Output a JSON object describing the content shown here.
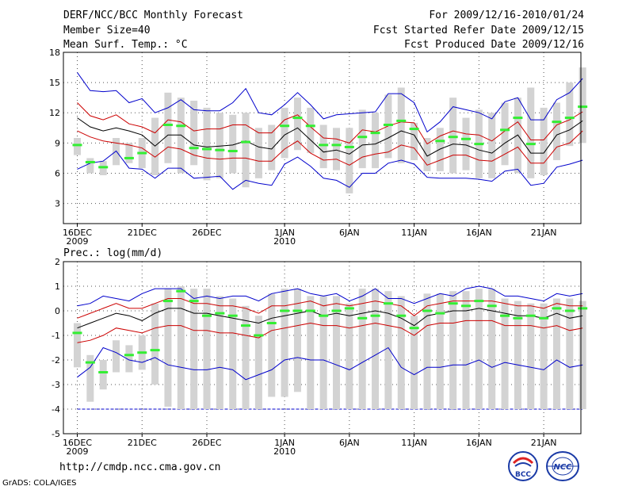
{
  "header": {
    "title": "DERF/NCC/BCC Monthly Forecast",
    "member_size": "Member Size=40",
    "variable": "Mean Surf. Temp.: °C",
    "period": "For 2009/12/16-2010/01/24",
    "started": "Fcst Started Refer Date 2009/12/15",
    "produced": "Fcst Produced Date 2009/12/16"
  },
  "footer": {
    "url": "http://cmdp.ncc.cma.gov.cn",
    "credit": "GrADS: COLA/IGES",
    "logo_bcc": "BCC",
    "logo_ncc": "NCC"
  },
  "colors": {
    "box": "#d3d3d3",
    "median": "#000000",
    "inner": "#cc0000",
    "outer": "#0000cc",
    "obs": "#33ee33",
    "grid": "#555555"
  },
  "chart_data": [
    {
      "type": "box",
      "title": "Mean Surf. Temp.: °C",
      "ylim": [
        1,
        18
      ],
      "yticks": [
        3,
        6,
        9,
        12,
        15,
        18
      ],
      "xticks": [
        {
          "day": 0,
          "label": "16DEC",
          "sub": "2009"
        },
        {
          "day": 5,
          "label": "21DEC",
          "sub": ""
        },
        {
          "day": 10,
          "label": "26DEC",
          "sub": ""
        },
        {
          "day": 16,
          "label": "1JAN",
          "sub": "2010"
        },
        {
          "day": 21,
          "label": "6JAN",
          "sub": ""
        },
        {
          "day": 26,
          "label": "11JAN",
          "sub": ""
        },
        {
          "day": 31,
          "label": "16JAN",
          "sub": ""
        },
        {
          "day": 36,
          "label": "21JAN",
          "sub": ""
        }
      ],
      "days": 40,
      "box_low": [
        7.8,
        6.0,
        5.8,
        6.8,
        7.0,
        6.5,
        5.8,
        7.0,
        6.0,
        6.8,
        5.3,
        5.5,
        6.0,
        4.6,
        5.5,
        6.3,
        7.5,
        8.3,
        8.0,
        6.5,
        6.3,
        4.0,
        6.5,
        6.5,
        7.5,
        7.0,
        7.3,
        6.2,
        6.2,
        6.0,
        6.3,
        5.5,
        5.5,
        6.8,
        6.0,
        5.5,
        5.8,
        7.3,
        8.7,
        9.0
      ],
      "box_high": [
        9.5,
        7.5,
        7.2,
        9.5,
        9.0,
        9.5,
        11.5,
        14.0,
        13.5,
        13.2,
        12.5,
        12.0,
        11.8,
        12.0,
        10.5,
        10.8,
        12.5,
        13.5,
        12.5,
        10.8,
        10.5,
        10.5,
        12.3,
        12.0,
        13.8,
        14.5,
        11.0,
        9.5,
        10.5,
        13.5,
        11.5,
        12.3,
        12.0,
        13.0,
        13.5,
        14.5,
        12.5,
        13.0,
        15.0,
        16.5
      ],
      "median": [
        11.5,
        10.6,
        10.2,
        10.5,
        10.2,
        9.8,
        8.7,
        9.8,
        9.8,
        8.8,
        8.6,
        8.7,
        8.8,
        9.2,
        8.6,
        8.4,
        9.8,
        10.5,
        9.3,
        8.1,
        8.3,
        7.9,
        8.8,
        8.9,
        9.5,
        10.2,
        9.8,
        7.7,
        8.4,
        8.9,
        8.8,
        8.3,
        8.0,
        9.0,
        9.8,
        8.0,
        8.0,
        9.8,
        10.3,
        11.2
      ],
      "inner_upper": [
        13.0,
        11.7,
        11.3,
        11.8,
        10.9,
        10.6,
        10.0,
        11.3,
        11.1,
        10.2,
        10.4,
        10.4,
        10.8,
        10.8,
        10.0,
        10.0,
        11.3,
        11.8,
        10.6,
        9.5,
        9.4,
        9.0,
        10.3,
        10.1,
        10.7,
        11.1,
        11.0,
        8.9,
        9.7,
        10.2,
        9.9,
        9.8,
        9.2,
        10.2,
        11.1,
        9.3,
        9.3,
        10.8,
        11.3,
        12.1
      ],
      "inner_lower": [
        10.2,
        9.6,
        9.2,
        9.0,
        8.8,
        8.5,
        7.6,
        8.6,
        8.4,
        7.8,
        7.5,
        7.4,
        7.5,
        7.5,
        7.2,
        7.2,
        8.4,
        9.2,
        8.0,
        7.3,
        7.4,
        6.8,
        7.6,
        7.9,
        8.1,
        8.8,
        8.5,
        6.8,
        7.3,
        7.8,
        7.8,
        7.3,
        7.2,
        7.9,
        8.6,
        7.0,
        7.0,
        8.6,
        9.0,
        10.2
      ],
      "outer_upper": [
        16.0,
        14.2,
        14.1,
        14.2,
        13.0,
        13.4,
        12.0,
        12.5,
        13.3,
        12.3,
        12.2,
        12.2,
        13.0,
        14.4,
        12.0,
        11.8,
        12.8,
        14.0,
        12.8,
        11.4,
        11.8,
        11.9,
        12.0,
        12.1,
        13.9,
        13.9,
        13.0,
        10.1,
        11.1,
        12.6,
        12.3,
        12.0,
        11.4,
        13.1,
        13.5,
        11.3,
        11.3,
        13.3,
        14.0,
        15.4
      ],
      "outer_lower": [
        6.4,
        7.0,
        7.2,
        8.2,
        6.5,
        6.4,
        5.5,
        6.5,
        6.5,
        5.5,
        5.6,
        5.7,
        4.4,
        5.3,
        5.0,
        4.8,
        6.9,
        7.6,
        6.7,
        5.5,
        5.3,
        4.6,
        6.0,
        6.0,
        7.0,
        7.3,
        6.9,
        5.6,
        5.5,
        5.5,
        5.5,
        5.4,
        5.2,
        6.2,
        6.4,
        4.8,
        5.0,
        6.6,
        6.9,
        7.3
      ],
      "observed": [
        8.8,
        7.1,
        6.6,
        null,
        7.5,
        8.0,
        null,
        10.8,
        10.7,
        8.5,
        8.4,
        8.3,
        8.2,
        9.1,
        null,
        null,
        10.7,
        11.5,
        10.7,
        8.8,
        8.8,
        8.6,
        9.6,
        10.0,
        10.8,
        11.2,
        10.4,
        null,
        9.2,
        9.6,
        9.4,
        8.9,
        null,
        10.3,
        11.5,
        8.9,
        null,
        11.1,
        11.5,
        12.6
      ]
    },
    {
      "type": "box",
      "title": "Prec.: log(mm/d)",
      "ylim": [
        -5,
        2
      ],
      "yticks": [
        -5,
        -4,
        -3,
        -2,
        -1,
        0,
        1,
        2
      ],
      "xticks": [
        {
          "day": 0,
          "label": "16DEC",
          "sub": "2009"
        },
        {
          "day": 5,
          "label": "21DEC",
          "sub": ""
        },
        {
          "day": 10,
          "label": "26DEC",
          "sub": ""
        },
        {
          "day": 16,
          "label": "1JAN",
          "sub": "2010"
        },
        {
          "day": 21,
          "label": "6JAN",
          "sub": ""
        },
        {
          "day": 26,
          "label": "11JAN",
          "sub": ""
        },
        {
          "day": 31,
          "label": "16JAN",
          "sub": ""
        },
        {
          "day": 36,
          "label": "21JAN",
          "sub": ""
        }
      ],
      "days": 40,
      "box_low": [
        -2.3,
        -3.7,
        -3.2,
        -2.5,
        -2.5,
        -2.4,
        -3.0,
        -3.9,
        -4.0,
        -4.0,
        -4.0,
        -4.0,
        -4.0,
        -4.0,
        -4.0,
        -3.5,
        -3.5,
        -3.3,
        -4.0,
        -4.0,
        -4.0,
        -4.0,
        -4.0,
        -4.0,
        -4.0,
        -4.0,
        -4.0,
        -4.0,
        -4.0,
        -4.0,
        -4.0,
        -4.0,
        -4.0,
        -4.0,
        -4.0,
        -4.0,
        -4.0,
        -4.0,
        -4.0,
        -4.0
      ],
      "box_high": [
        -0.5,
        -1.8,
        -2.0,
        -1.2,
        -1.4,
        -1.0,
        0.3,
        0.9,
        1.0,
        0.9,
        0.9,
        0.6,
        0.5,
        0.2,
        -0.2,
        0.7,
        0.9,
        0.9,
        0.6,
        0.6,
        0.6,
        0.3,
        0.9,
        0.9,
        0.8,
        0.6,
        -0.2,
        0.7,
        0.7,
        0.8,
        0.8,
        0.9,
        0.9,
        0.5,
        0.4,
        0.3,
        0.3,
        0.5,
        0.5,
        0.4
      ],
      "median": [
        -0.7,
        -0.5,
        -0.3,
        -0.1,
        -0.2,
        -0.4,
        -0.1,
        0.1,
        0.1,
        -0.1,
        -0.1,
        -0.2,
        -0.3,
        -0.4,
        -0.5,
        -0.3,
        -0.2,
        -0.1,
        0.0,
        -0.2,
        -0.1,
        -0.2,
        -0.1,
        0.0,
        -0.1,
        -0.3,
        -0.6,
        -0.2,
        -0.1,
        0.0,
        0.0,
        0.1,
        0.0,
        -0.1,
        -0.2,
        -0.2,
        -0.3,
        -0.1,
        -0.3,
        -0.2
      ],
      "inner_upper": [
        -0.3,
        -0.1,
        0.1,
        0.3,
        0.1,
        0.1,
        0.3,
        0.5,
        0.5,
        0.3,
        0.3,
        0.2,
        0.2,
        0.1,
        -0.1,
        0.2,
        0.2,
        0.3,
        0.4,
        0.2,
        0.3,
        0.2,
        0.3,
        0.4,
        0.3,
        0.2,
        -0.2,
        0.2,
        0.3,
        0.4,
        0.4,
        0.4,
        0.4,
        0.3,
        0.2,
        0.2,
        0.1,
        0.3,
        0.2,
        0.2
      ],
      "inner_lower": [
        -1.3,
        -1.2,
        -1.0,
        -0.7,
        -0.8,
        -0.9,
        -0.7,
        -0.6,
        -0.6,
        -0.8,
        -0.8,
        -0.9,
        -0.9,
        -1.0,
        -1.1,
        -0.8,
        -0.7,
        -0.6,
        -0.5,
        -0.6,
        -0.6,
        -0.7,
        -0.6,
        -0.5,
        -0.6,
        -0.7,
        -1.0,
        -0.6,
        -0.5,
        -0.5,
        -0.4,
        -0.4,
        -0.4,
        -0.6,
        -0.6,
        -0.6,
        -0.7,
        -0.6,
        -0.8,
        -0.7
      ],
      "outer_upper": [
        0.2,
        0.3,
        0.6,
        0.5,
        0.4,
        0.7,
        0.9,
        0.9,
        0.9,
        0.5,
        0.6,
        0.5,
        0.6,
        0.6,
        0.4,
        0.7,
        0.8,
        0.9,
        0.7,
        0.6,
        0.7,
        0.4,
        0.6,
        0.9,
        0.5,
        0.5,
        0.3,
        0.5,
        0.7,
        0.6,
        0.9,
        1.0,
        0.9,
        0.6,
        0.6,
        0.5,
        0.4,
        0.7,
        0.6,
        0.7
      ],
      "outer_lower": [
        -2.7,
        -2.3,
        -1.5,
        -1.7,
        -2.0,
        -2.1,
        -1.9,
        -2.2,
        -2.3,
        -2.4,
        -2.4,
        -2.3,
        -2.4,
        -2.8,
        -2.6,
        -2.4,
        -2.0,
        -1.9,
        -2.0,
        -2.0,
        -2.2,
        -2.4,
        -2.1,
        -1.8,
        -1.5,
        -2.3,
        -2.6,
        -2.3,
        -2.3,
        -2.2,
        -2.2,
        -2.0,
        -2.3,
        -2.1,
        -2.2,
        -2.3,
        -2.4,
        -2.0,
        -2.3,
        -2.2
      ],
      "observed": [
        -0.9,
        -2.1,
        -2.5,
        null,
        -1.8,
        -1.7,
        -1.6,
        0.4,
        0.8,
        0.4,
        -0.2,
        -0.1,
        -0.2,
        -0.6,
        -1.0,
        -0.5,
        0.0,
        0.0,
        0.0,
        -0.2,
        0.0,
        0.1,
        -0.3,
        -0.2,
        0.3,
        -0.2,
        -0.7,
        0.0,
        -0.1,
        0.3,
        0.2,
        0.4,
        0.2,
        -0.2,
        -0.3,
        -0.2,
        -0.3,
        0.1,
        0.0,
        0.1
      ]
    }
  ]
}
